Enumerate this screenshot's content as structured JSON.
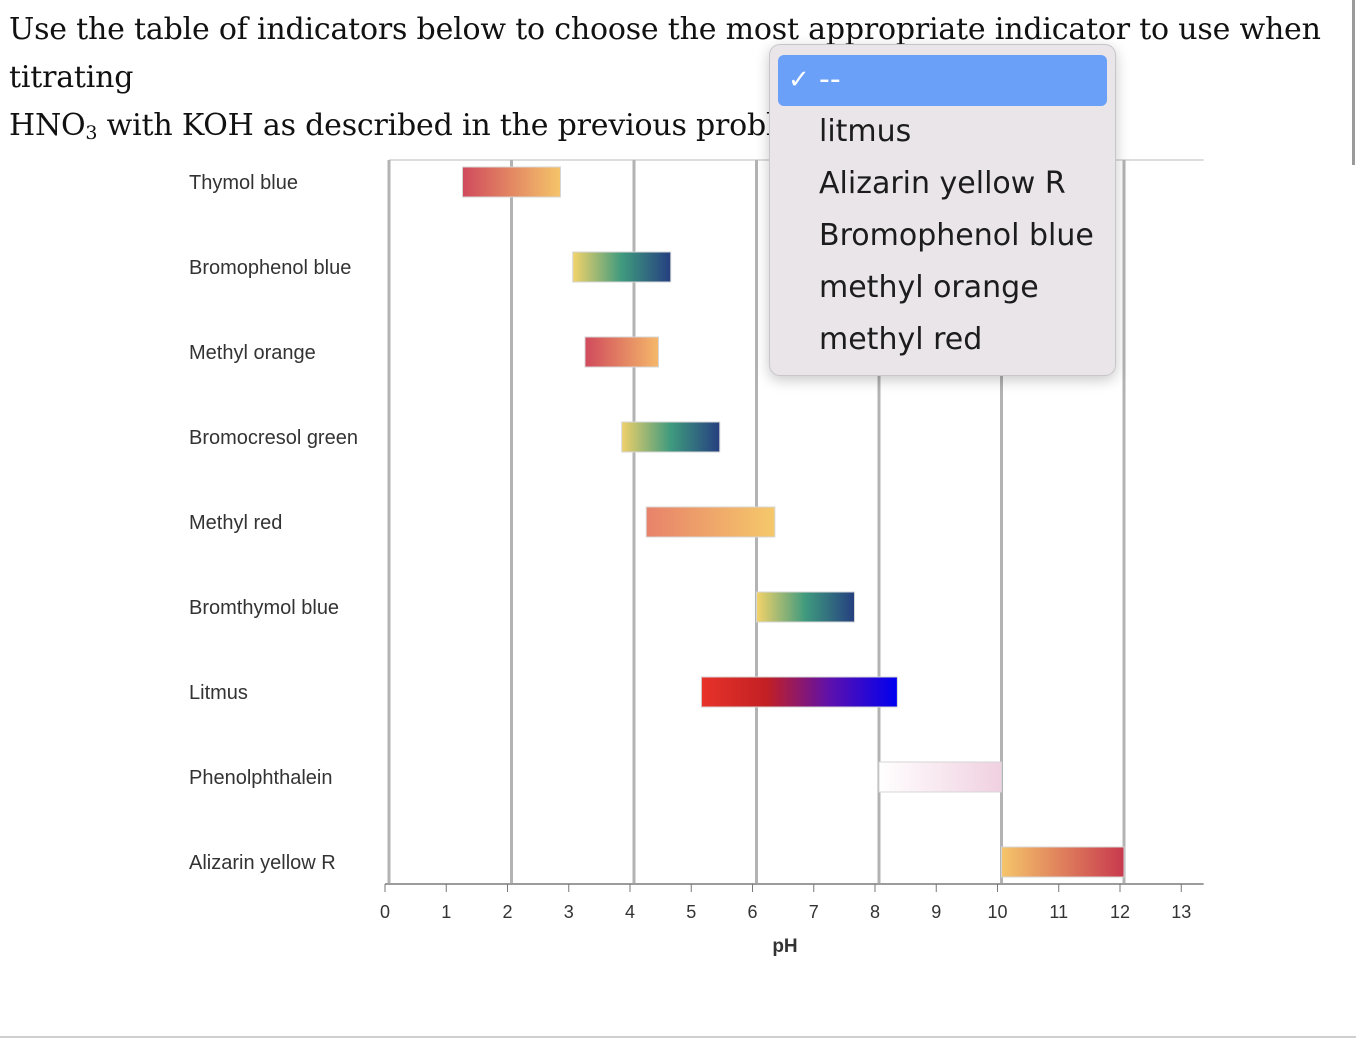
{
  "question": {
    "line1": "Use the table of indicators below to choose the most appropriate indicator to use when titrating",
    "line2_prefix": "HNO",
    "line2_sub": "3",
    "line2_suffix": " with KOH as described in the previous problem"
  },
  "dropdown": {
    "selected": "--",
    "check_icon": "check-icon",
    "options": [
      "litmus",
      "Alizarin yellow R",
      "Bromophenol blue",
      "methyl orange",
      "methyl red"
    ],
    "selected_color": "#6aa0f8"
  },
  "chart_data": {
    "type": "bar",
    "subtype": "range-bar",
    "xlabel": "pH",
    "xlim": [
      0,
      13
    ],
    "xticks": [
      "0",
      "1",
      "2",
      "3",
      "4",
      "5",
      "6",
      "7",
      "8",
      "9",
      "10",
      "11",
      "12",
      "13"
    ],
    "grid": "vertical lines at even pH values",
    "indicators": [
      {
        "name": "Thymol blue",
        "low": 1.2,
        "high": 2.8,
        "colors": [
          "#d04a5c",
          "#f5c56a"
        ]
      },
      {
        "name": "Bromophenol blue",
        "low": 3.0,
        "high": 4.6,
        "colors": [
          "#f4d36a",
          "#3f9a7e",
          "#253f80"
        ]
      },
      {
        "name": "Methyl orange",
        "low": 3.2,
        "high": 4.4,
        "colors": [
          "#d04a5c",
          "#f5b86a"
        ]
      },
      {
        "name": "Bromocresol green",
        "low": 3.8,
        "high": 5.4,
        "colors": [
          "#f0d06a",
          "#3f9a7e",
          "#253f80"
        ]
      },
      {
        "name": "Methyl red",
        "low": 4.2,
        "high": 6.3,
        "colors": [
          "#e8826a",
          "#f5c96a"
        ]
      },
      {
        "name": "Bromthymol blue",
        "low": 6.0,
        "high": 7.6,
        "colors": [
          "#f4d36a",
          "#3f9a7e",
          "#253f80"
        ]
      },
      {
        "name": "Litmus",
        "low": 5.1,
        "high": 8.3,
        "colors": [
          "#e8322a",
          "#c22024",
          "#5a10b0",
          "#0000f0"
        ]
      },
      {
        "name": "Phenolphthalein",
        "low": 8.0,
        "high": 10.0,
        "colors": [
          "#ffffff",
          "#f0d0e0"
        ]
      },
      {
        "name": "Alizarin yellow R",
        "low": 10.0,
        "high": 12.0,
        "colors": [
          "#f5c56a",
          "#c8394e"
        ]
      }
    ]
  }
}
